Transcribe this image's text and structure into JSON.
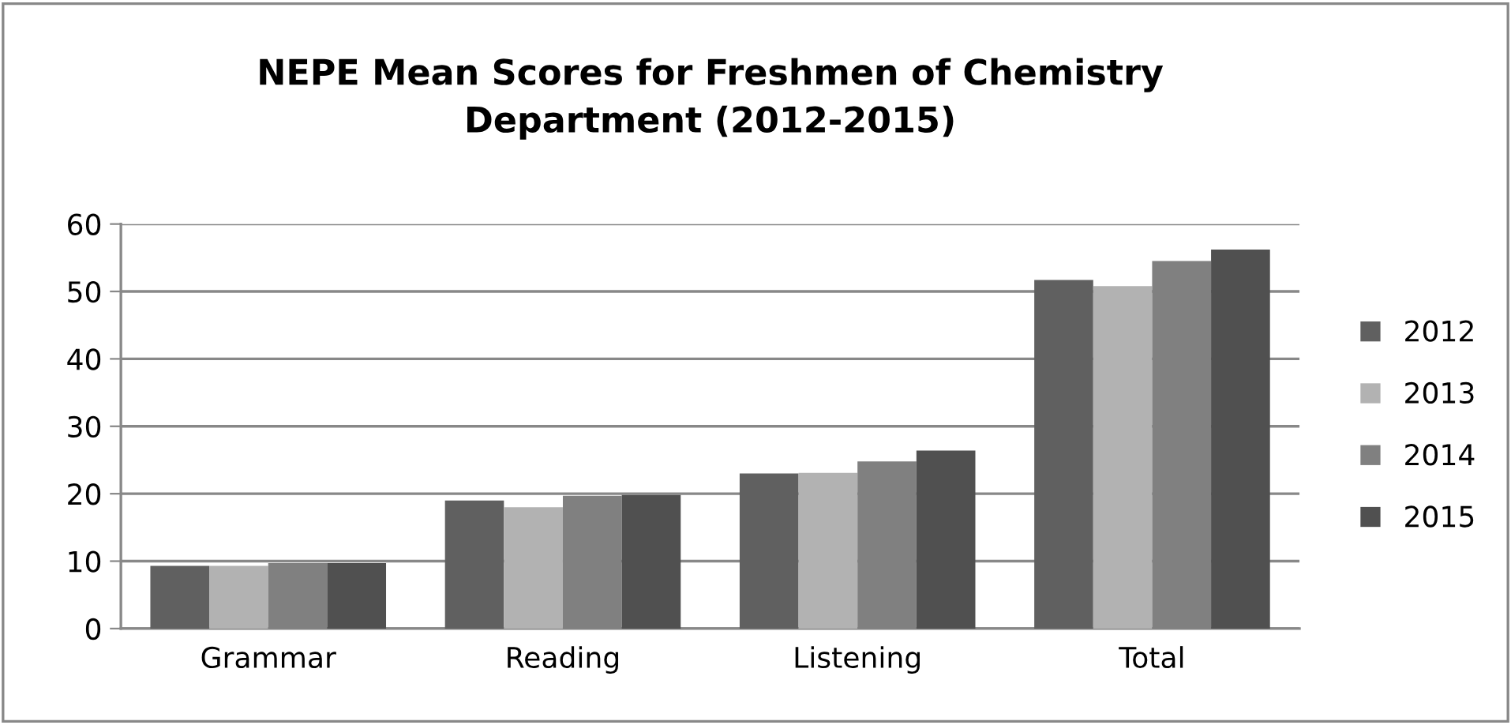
{
  "chart_data": {
    "type": "bar",
    "title": "NEPE Mean Scores for Freshmen of Chemistry\nDepartment (2012-2015)",
    "categories": [
      "Grammar",
      "Reading",
      "Listening",
      "Total"
    ],
    "series": [
      {
        "name": "2012",
        "color": "#606060",
        "values": [
          9.3,
          19.0,
          23.0,
          51.7
        ]
      },
      {
        "name": "2013",
        "color": "#b2b2b2",
        "values": [
          9.3,
          18.0,
          23.1,
          50.8
        ]
      },
      {
        "name": "2014",
        "color": "#808080",
        "values": [
          9.7,
          19.7,
          24.8,
          54.5
        ]
      },
      {
        "name": "2015",
        "color": "#505050",
        "values": [
          9.7,
          19.8,
          26.4,
          56.2
        ]
      }
    ],
    "ylim": [
      0,
      60
    ],
    "yticks": [
      0,
      10,
      20,
      30,
      40,
      50,
      60
    ],
    "grid": "y",
    "legend": "right"
  }
}
